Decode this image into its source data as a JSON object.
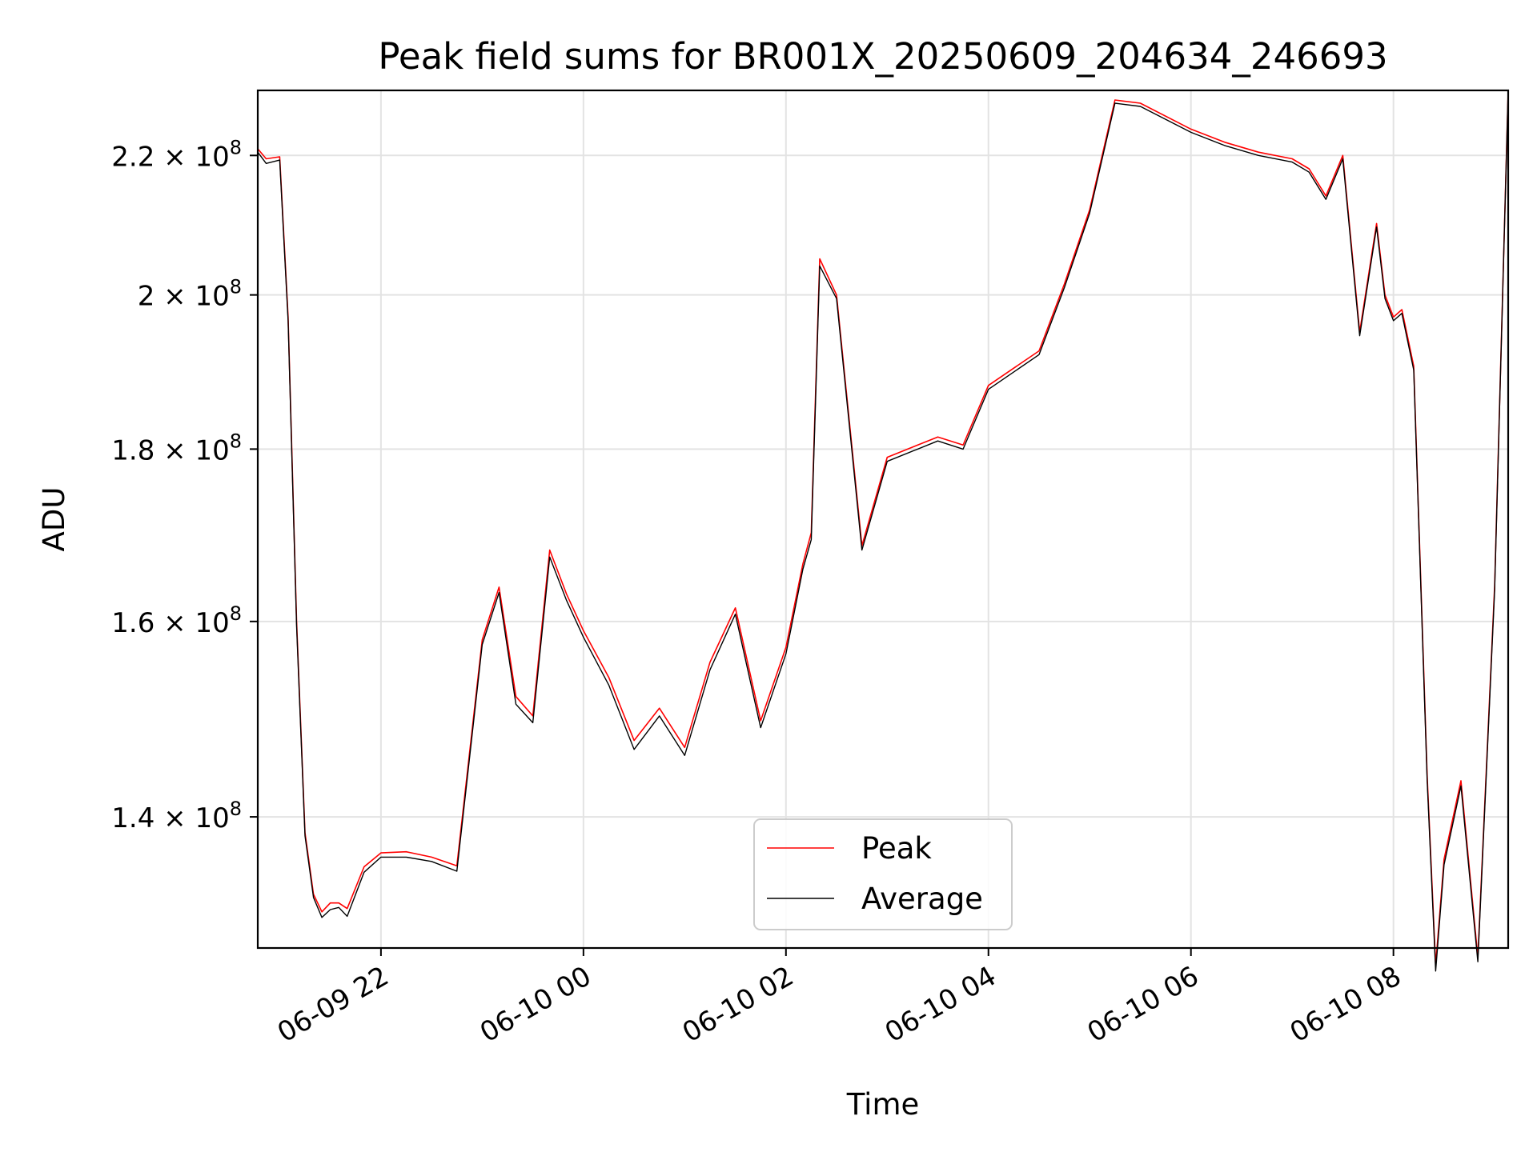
{
  "chart_data": {
    "type": "line",
    "title": "Peak field sums for BR001X_20250609_204634_246693",
    "xlabel": "Time",
    "ylabel": "ADU",
    "yscale": "log",
    "ylim": [
      128000000,
      230000000
    ],
    "xlim": [
      "2025-06-09 20:47",
      "2025-06-10 09:08"
    ],
    "grid": true,
    "legend_position": "lower-center",
    "x_ticks": [
      {
        "value": "2025-06-09 22:00",
        "label": "06-09 22"
      },
      {
        "value": "2025-06-10 00:00",
        "label": "06-10 00"
      },
      {
        "value": "2025-06-10 02:00",
        "label": "06-10 02"
      },
      {
        "value": "2025-06-10 04:00",
        "label": "06-10 04"
      },
      {
        "value": "2025-06-10 06:00",
        "label": "06-10 06"
      },
      {
        "value": "2025-06-10 08:00",
        "label": "06-10 08"
      }
    ],
    "y_ticks": [
      {
        "value": 140000000,
        "label_base": "1.4",
        "label_exp": "8"
      },
      {
        "value": 160000000,
        "label_base": "1.6",
        "label_exp": "8"
      },
      {
        "value": 180000000,
        "label_base": "1.8",
        "label_exp": "8"
      },
      {
        "value": 200000000,
        "label_base": "2",
        "label_exp": "8"
      },
      {
        "value": 220000000,
        "label_base": "2.2",
        "label_exp": "8"
      }
    ],
    "series": [
      {
        "name": "Peak",
        "color": "#ff0000",
        "x": [
          "2025-06-09 20:47",
          "2025-06-09 20:52",
          "2025-06-09 21:00",
          "2025-06-09 21:05",
          "2025-06-09 21:10",
          "2025-06-09 21:15",
          "2025-06-09 21:20",
          "2025-06-09 21:25",
          "2025-06-09 21:30",
          "2025-06-09 21:35",
          "2025-06-09 21:40",
          "2025-06-09 21:50",
          "2025-06-09 22:00",
          "2025-06-09 22:15",
          "2025-06-09 22:30",
          "2025-06-09 22:45",
          "2025-06-09 23:00",
          "2025-06-09 23:10",
          "2025-06-09 23:20",
          "2025-06-09 23:30",
          "2025-06-09 23:40",
          "2025-06-09 23:50",
          "2025-06-10 00:00",
          "2025-06-10 00:15",
          "2025-06-10 00:30",
          "2025-06-10 00:45",
          "2025-06-10 01:00",
          "2025-06-10 01:15",
          "2025-06-10 01:30",
          "2025-06-10 01:45",
          "2025-06-10 02:00",
          "2025-06-10 02:10",
          "2025-06-10 02:15",
          "2025-06-10 02:20",
          "2025-06-10 02:30",
          "2025-06-10 02:45",
          "2025-06-10 03:00",
          "2025-06-10 03:30",
          "2025-06-10 03:45",
          "2025-06-10 04:00",
          "2025-06-10 04:30",
          "2025-06-10 04:45",
          "2025-06-10 05:00",
          "2025-06-10 05:15",
          "2025-06-10 05:30",
          "2025-06-10 06:00",
          "2025-06-10 06:20",
          "2025-06-10 06:40",
          "2025-06-10 07:00",
          "2025-06-10 07:10",
          "2025-06-10 07:20",
          "2025-06-10 07:30",
          "2025-06-10 07:40",
          "2025-06-10 07:50",
          "2025-06-10 07:55",
          "2025-06-10 08:00",
          "2025-06-10 08:05",
          "2025-06-10 08:12",
          "2025-06-10 08:20",
          "2025-06-10 08:25",
          "2025-06-10 08:30",
          "2025-06-10 08:40",
          "2025-06-10 08:50",
          "2025-06-10 09:00",
          "2025-06-10 09:08"
        ],
        "y": [
          221000000,
          219500000,
          219800000,
          197000000,
          160000000,
          138500000,
          132800000,
          131200000,
          132000000,
          132000000,
          131500000,
          135300000,
          136600000,
          136700000,
          136200000,
          135400000,
          158000000,
          163800000,
          152000000,
          150000000,
          168000000,
          163000000,
          159000000,
          154000000,
          147500000,
          150800000,
          146800000,
          155600000,
          161500000,
          149500000,
          157200000,
          166400000,
          170000000,
          205000000,
          200000000,
          168500000,
          179000000,
          181500000,
          180500000,
          188000000,
          192500000,
          201500000,
          212000000,
          228500000,
          228000000,
          224000000,
          222000000,
          220500000,
          219500000,
          218000000,
          214000000,
          220000000,
          195000000,
          210000000,
          200000000,
          197000000,
          198000000,
          190500000,
          144000000,
          126500000,
          136000000,
          143500000,
          127200000,
          164000000,
          230000000
        ]
      },
      {
        "name": "Average",
        "color": "#000000",
        "x": [
          "2025-06-09 20:47",
          "2025-06-09 20:52",
          "2025-06-09 21:00",
          "2025-06-09 21:05",
          "2025-06-09 21:10",
          "2025-06-09 21:15",
          "2025-06-09 21:20",
          "2025-06-09 21:25",
          "2025-06-09 21:30",
          "2025-06-09 21:35",
          "2025-06-09 21:40",
          "2025-06-09 21:50",
          "2025-06-09 22:00",
          "2025-06-09 22:15",
          "2025-06-09 22:30",
          "2025-06-09 22:45",
          "2025-06-09 23:00",
          "2025-06-09 23:10",
          "2025-06-09 23:20",
          "2025-06-09 23:30",
          "2025-06-09 23:40",
          "2025-06-09 23:50",
          "2025-06-10 00:00",
          "2025-06-10 00:15",
          "2025-06-10 00:30",
          "2025-06-10 00:45",
          "2025-06-10 01:00",
          "2025-06-10 01:15",
          "2025-06-10 01:30",
          "2025-06-10 01:45",
          "2025-06-10 02:00",
          "2025-06-10 02:10",
          "2025-06-10 02:15",
          "2025-06-10 02:20",
          "2025-06-10 02:30",
          "2025-06-10 02:45",
          "2025-06-10 03:00",
          "2025-06-10 03:30",
          "2025-06-10 03:45",
          "2025-06-10 04:00",
          "2025-06-10 04:30",
          "2025-06-10 04:45",
          "2025-06-10 05:00",
          "2025-06-10 05:15",
          "2025-06-10 05:30",
          "2025-06-10 06:00",
          "2025-06-10 06:20",
          "2025-06-10 06:40",
          "2025-06-10 07:00",
          "2025-06-10 07:10",
          "2025-06-10 07:20",
          "2025-06-10 07:30",
          "2025-06-10 07:40",
          "2025-06-10 07:50",
          "2025-06-10 07:55",
          "2025-06-10 08:00",
          "2025-06-10 08:05",
          "2025-06-10 08:12",
          "2025-06-10 08:20",
          "2025-06-10 08:25",
          "2025-06-10 08:30",
          "2025-06-10 08:40",
          "2025-06-10 08:50",
          "2025-06-10 09:00",
          "2025-06-10 09:08"
        ],
        "y": [
          220500000,
          218800000,
          219300000,
          196500000,
          159500000,
          138200000,
          132500000,
          130700000,
          131400000,
          131600000,
          130800000,
          134800000,
          136200000,
          136200000,
          135800000,
          134900000,
          157500000,
          163200000,
          151200000,
          149300000,
          167200000,
          162300000,
          158300000,
          153200000,
          146600000,
          150000000,
          146000000,
          154800000,
          160800000,
          148800000,
          156500000,
          165800000,
          169200000,
          204000000,
          199500000,
          168000000,
          178500000,
          181000000,
          180000000,
          187500000,
          192000000,
          201000000,
          211500000,
          228000000,
          227500000,
          223500000,
          221500000,
          220000000,
          219000000,
          217500000,
          213500000,
          219500000,
          194500000,
          209500000,
          199500000,
          196500000,
          197500000,
          190000000,
          143500000,
          126000000,
          135500000,
          143000000,
          126800000,
          163500000,
          230000000
        ]
      }
    ]
  }
}
